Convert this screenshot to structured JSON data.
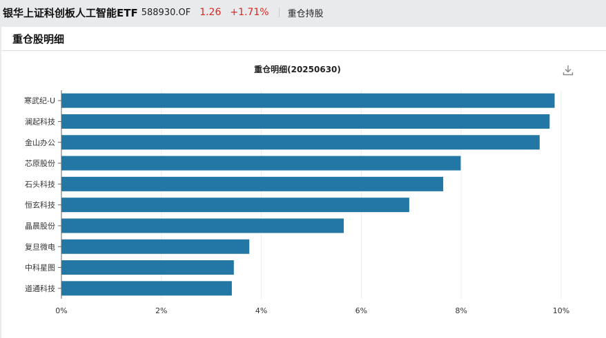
{
  "header": {
    "fund_name": "银华上证科创板人工智能ETF",
    "fund_code": "588930.OF",
    "price": "1.26",
    "change": "+1.71%",
    "tab": "重仓持股"
  },
  "panel": {
    "title": "重仓股明细",
    "download_icon": "download-icon"
  },
  "colors": {
    "bar": "#2277a4",
    "up": "#e0251d"
  },
  "chart_data": {
    "type": "bar",
    "orientation": "horizontal",
    "title": "重仓明细(20250630)",
    "categories": [
      "寒武纪-U",
      "澜起科技",
      "金山办公",
      "芯原股份",
      "石头科技",
      "恒玄科技",
      "晶晨股份",
      "复旦微电",
      "中科星图",
      "道通科技"
    ],
    "values": [
      9.87,
      9.77,
      9.57,
      7.99,
      7.64,
      6.96,
      5.65,
      3.76,
      3.45,
      3.41
    ],
    "xlim": [
      0,
      10
    ],
    "xticks": [
      0,
      2,
      4,
      6,
      8,
      10
    ],
    "xtick_labels": [
      "0%",
      "2%",
      "4%",
      "6%",
      "8%",
      "10%"
    ],
    "grid": true,
    "xlabel": "",
    "ylabel": ""
  }
}
